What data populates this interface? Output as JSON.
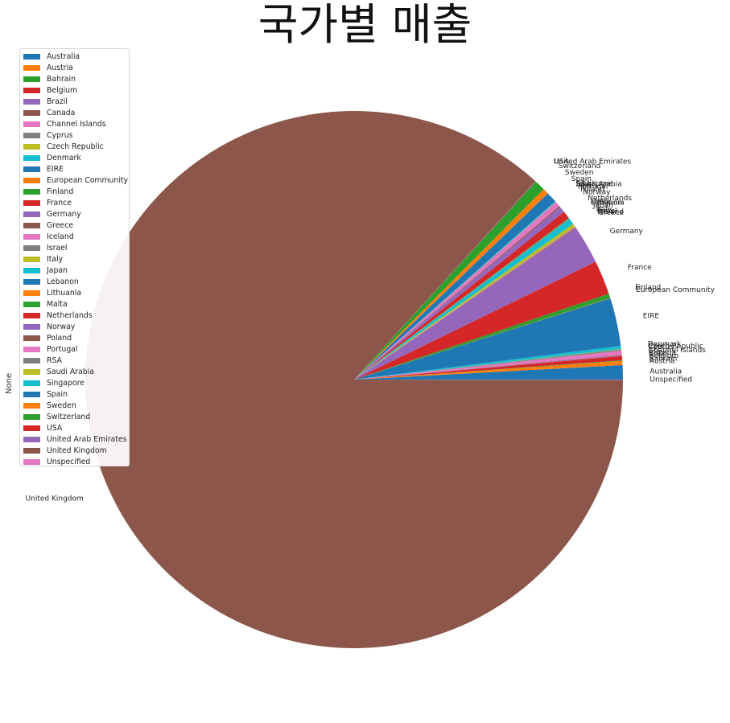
{
  "chart_data": {
    "type": "pie",
    "title": "국가별 매출",
    "ylabel": "None",
    "legend_position": "upper-left",
    "start_angle_deg": 0,
    "direction": "counterclockwise",
    "slices": [
      {
        "label": "Australia",
        "value": 0.85,
        "color": "#1f77b4"
      },
      {
        "label": "Austria",
        "value": 0.25,
        "color": "#ff7f0e"
      },
      {
        "label": "Bahrain",
        "value": 0.03,
        "color": "#2ca02c"
      },
      {
        "label": "Belgium",
        "value": 0.25,
        "color": "#d62728"
      },
      {
        "label": "Brazil",
        "value": 0.02,
        "color": "#9467bd"
      },
      {
        "label": "Canada",
        "value": 0.04,
        "color": "#8c564b"
      },
      {
        "label": "Channel Islands",
        "value": 0.25,
        "color": "#e377c2"
      },
      {
        "label": "Cyprus",
        "value": 0.08,
        "color": "#7f7f7f"
      },
      {
        "label": "Czech Republic",
        "value": 0.02,
        "color": "#bcbd22"
      },
      {
        "label": "Denmark",
        "value": 0.19,
        "color": "#17becf"
      },
      {
        "label": "EIRE",
        "value": 2.84,
        "color": "#1f77b4"
      },
      {
        "label": "European Community",
        "value": 0.02,
        "color": "#ff7f0e"
      },
      {
        "label": "Finland",
        "value": 0.26,
        "color": "#2ca02c"
      },
      {
        "label": "France",
        "value": 2.02,
        "color": "#d62728"
      },
      {
        "label": "Germany",
        "value": 2.27,
        "color": "#9467bd"
      },
      {
        "label": "Greece",
        "value": 0.05,
        "color": "#8c564b"
      },
      {
        "label": "Iceland",
        "value": 0.05,
        "color": "#e377c2"
      },
      {
        "label": "Israel",
        "value": 0.02,
        "color": "#7f7f7f"
      },
      {
        "label": "Italy",
        "value": 0.18,
        "color": "#bcbd22"
      },
      {
        "label": "Japan",
        "value": 0.35,
        "color": "#17becf"
      },
      {
        "label": "Lebanon",
        "value": 0.02,
        "color": "#1f77b4"
      },
      {
        "label": "Lithuania",
        "value": 0.02,
        "color": "#ff7f0e"
      },
      {
        "label": "Malta",
        "value": 0.04,
        "color": "#2ca02c"
      },
      {
        "label": "Netherlands",
        "value": 0.45,
        "color": "#d62728"
      },
      {
        "label": "Norway",
        "value": 0.36,
        "color": "#9467bd"
      },
      {
        "label": "Poland",
        "value": 0.07,
        "color": "#8c564b"
      },
      {
        "label": "Portugal",
        "value": 0.31,
        "color": "#e377c2"
      },
      {
        "label": "RSA",
        "value": 0.01,
        "color": "#7f7f7f"
      },
      {
        "label": "Saudi Arabia",
        "value": 0.01,
        "color": "#bcbd22"
      },
      {
        "label": "Singapore",
        "value": 0.05,
        "color": "#17becf"
      },
      {
        "label": "Spain",
        "value": 0.62,
        "color": "#1f77b4"
      },
      {
        "label": "Sweden",
        "value": 0.35,
        "color": "#ff7f0e"
      },
      {
        "label": "Switzerland",
        "value": 0.63,
        "color": "#2ca02c"
      },
      {
        "label": "USA",
        "value": 0.02,
        "color": "#d62728"
      },
      {
        "label": "United Arab Emirates",
        "value": 0.02,
        "color": "#9467bd"
      },
      {
        "label": "United Kingdom",
        "value": 85.4,
        "color": "#8c564b"
      },
      {
        "label": "Unspecified",
        "value": 0.02,
        "color": "#e377c2"
      }
    ]
  }
}
